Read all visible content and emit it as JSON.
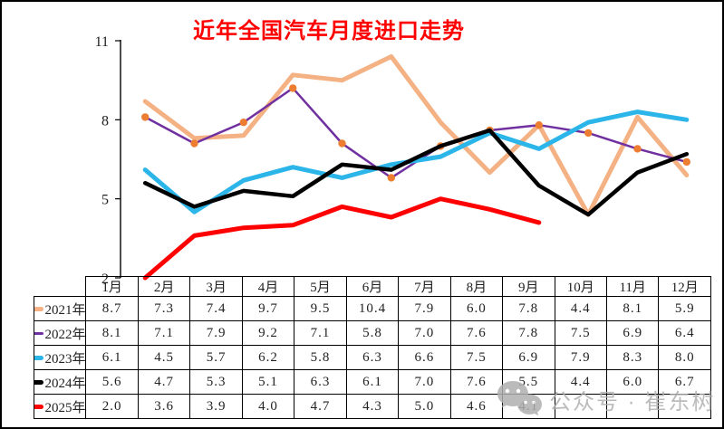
{
  "title": "近年全国汽车月度进口走势",
  "title_color": "#FF0000",
  "watermark": {
    "text": "公众号 · 崔东树",
    "icon": "wechat-icon",
    "color": "#b0b0b0"
  },
  "chart_data": {
    "type": "line",
    "title": "近年全国汽车月度进口走势",
    "xlabel": "",
    "ylabel": "",
    "ylim": [
      2,
      11
    ],
    "yticks": [
      2,
      5,
      8,
      11
    ],
    "grid": false,
    "legend_position": "table-left",
    "categories": [
      "1月",
      "2月",
      "3月",
      "4月",
      "5月",
      "6月",
      "7月",
      "8月",
      "9月",
      "10月",
      "11月",
      "12月"
    ],
    "series": [
      {
        "name": "2021年",
        "color": "#F4B183",
        "line_width": 5,
        "marker": false,
        "values": [
          8.7,
          7.3,
          7.4,
          9.7,
          9.5,
          10.4,
          7.9,
          6.0,
          7.8,
          4.4,
          8.1,
          5.9
        ]
      },
      {
        "name": "2022年",
        "color": "#7030A0",
        "line_width": 2.5,
        "marker": true,
        "marker_color": "#ED7D31",
        "values": [
          8.1,
          7.1,
          7.9,
          9.2,
          7.1,
          5.8,
          7.0,
          7.6,
          7.8,
          7.5,
          6.9,
          6.4
        ]
      },
      {
        "name": "2023年",
        "color": "#2BB5E9",
        "line_width": 5,
        "marker": false,
        "values": [
          6.1,
          4.5,
          5.7,
          6.2,
          5.8,
          6.3,
          6.6,
          7.5,
          6.9,
          7.9,
          8.3,
          8.0
        ]
      },
      {
        "name": "2024年",
        "color": "#000000",
        "line_width": 4.5,
        "marker": false,
        "values": [
          5.6,
          4.7,
          5.3,
          5.1,
          6.3,
          6.1,
          7.0,
          7.6,
          5.5,
          4.4,
          6.0,
          6.7
        ]
      },
      {
        "name": "2025年",
        "color": "#FF0000",
        "line_width": 5,
        "marker": false,
        "values": [
          2.0,
          3.6,
          3.9,
          4.0,
          4.7,
          4.3,
          5.0,
          4.6,
          4.1,
          null,
          null,
          null
        ]
      }
    ]
  }
}
